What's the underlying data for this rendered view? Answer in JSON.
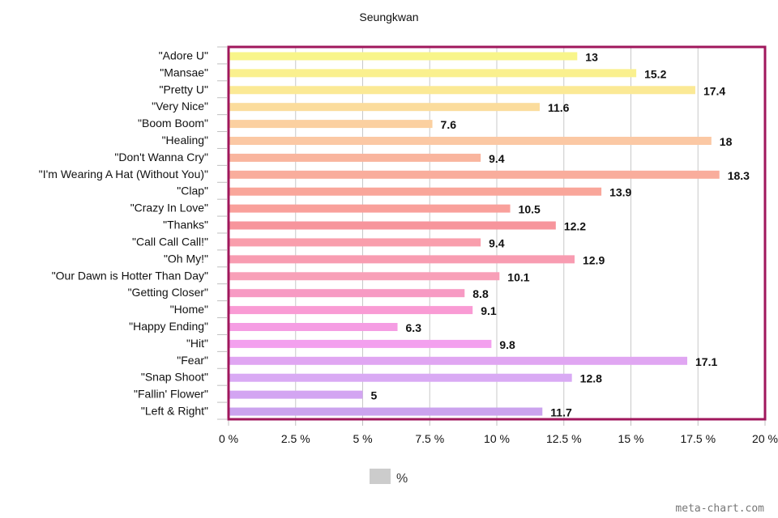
{
  "chart_data": {
    "type": "bar",
    "orientation": "horizontal",
    "title": "Seungkwan",
    "categories": [
      "\"Adore U\"",
      "\"Mansae\"",
      "\"Pretty U\"",
      "\"Very Nice\"",
      "\"Boom Boom\"",
      "\"Healing\"",
      "\"Don't Wanna Cry\"",
      "\"I'm Wearing A Hat (Without You)\"",
      "\"Clap\"",
      "\"Crazy In Love\"",
      "\"Thanks\"",
      "\"Call Call Call!\"",
      "\"Oh My!\"",
      "\"Our Dawn is Hotter Than Day\"",
      "\"Getting Closer\"",
      "\"Home\"",
      "\"Happy Ending\"",
      "\"Hit\"",
      "\"Fear\"",
      "\"Snap Shoot\"",
      "\"Fallin' Flower\"",
      "\"Left & Right\""
    ],
    "values": [
      13,
      15.2,
      17.4,
      11.6,
      7.6,
      18,
      9.4,
      18.3,
      13.9,
      10.5,
      12.2,
      9.4,
      12.9,
      10.1,
      8.8,
      9.1,
      6.3,
      9.8,
      17.1,
      12.8,
      5,
      11.7
    ],
    "value_labels": [
      "13",
      "15.2",
      "17.4",
      "11.6",
      "7.6",
      "18",
      "9.4",
      "18.3",
      "13.9",
      "10.5",
      "12.2",
      "9.4",
      "12.9",
      "10.1",
      "8.8",
      "9.1",
      "6.3",
      "9.8",
      "17.1",
      "12.8",
      "5",
      "11.7"
    ],
    "colors": [
      "#f8f58a",
      "#faf08e",
      "#fbe995",
      "#fbdc9c",
      "#fbd0a0",
      "#fbc8a4",
      "#f9b59e",
      "#f9ad9c",
      "#f9a69a",
      "#f9a09b",
      "#f7959c",
      "#f99eac",
      "#f89cb1",
      "#f8a0b8",
      "#f79ac3",
      "#f99bd4",
      "#f59de3",
      "#f3a0ee",
      "#e0a6f2",
      "#d9aaf4",
      "#d3a5f2",
      "#cba3ee"
    ],
    "xlim": [
      0,
      20
    ],
    "x_ticks": [
      "0 %",
      "2.5 %",
      "5 %",
      "7.5 %",
      "10 %",
      "12.5 %",
      "15 %",
      "17.5 %",
      "20 %"
    ],
    "x_tick_values": [
      0,
      2.5,
      5,
      7.5,
      10,
      12.5,
      15,
      17.5,
      20
    ],
    "grid": true,
    "legend": {
      "position": "bottom",
      "label": "%",
      "color": "#cccccc"
    },
    "plot_border_color": "#a0175c",
    "credit": "meta-chart.com"
  }
}
